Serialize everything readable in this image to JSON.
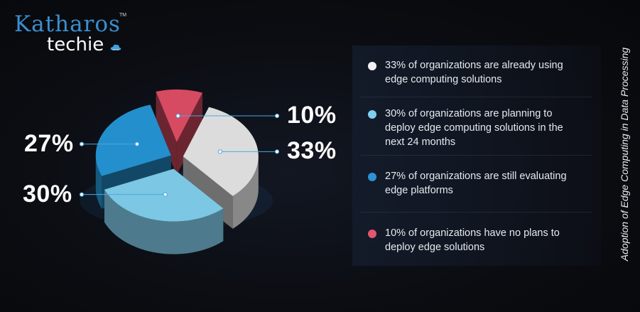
{
  "logo": {
    "brand": "Katharos",
    "tm": "TM",
    "sub": "techie"
  },
  "side_title": "Adoption of Edge Computing in Data Processing",
  "legend": [
    {
      "text": "33% of organizations are already using edge computing solutions",
      "color": "#f2f2f2"
    },
    {
      "text": "30% of organizations are planning to deploy edge computing solutions in the next 24 months",
      "color": "#7fd0ec"
    },
    {
      "text": "27% of organizations are still evaluating edge platforms",
      "color": "#2b93d6"
    },
    {
      "text": "10% of organizations have no plans to deploy edge solutions",
      "color": "#e3566e"
    }
  ],
  "chart_data": {
    "type": "pie",
    "title": "Adoption of Edge Computing in Data Processing",
    "slices": [
      {
        "label": "33%",
        "value": 33,
        "color": "#dcdcdc"
      },
      {
        "label": "30%",
        "value": 30,
        "color": "#7cc7e3"
      },
      {
        "label": "27%",
        "value": 27,
        "color": "#238fcc"
      },
      {
        "label": "10%",
        "value": 10,
        "color": "#d64a62"
      }
    ]
  }
}
